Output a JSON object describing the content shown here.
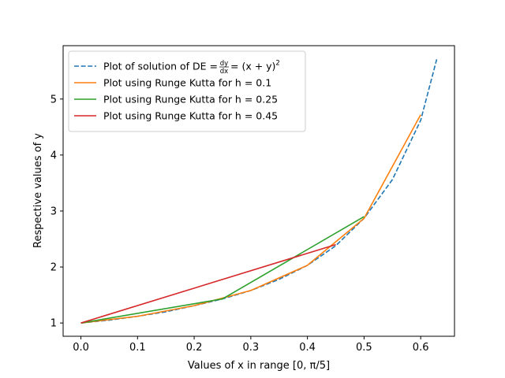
{
  "chart_data": {
    "type": "line",
    "title": "",
    "xlabel": "Values of x in range [0, π/5]",
    "ylabel": "Respective values of y",
    "xlim": [
      -0.0314,
      0.6597
    ],
    "ylim": [
      0.763,
      5.953
    ],
    "xticks": [
      0.0,
      0.1,
      0.2,
      0.3,
      0.4,
      0.5,
      0.6
    ],
    "xtick_labels": [
      "0.0",
      "0.1",
      "0.2",
      "0.3",
      "0.4",
      "0.5",
      "0.6"
    ],
    "yticks": [
      1,
      2,
      3,
      4,
      5
    ],
    "ytick_labels": [
      "1",
      "2",
      "3",
      "4",
      "5"
    ],
    "grid": false,
    "legend_position": "top-left",
    "series": [
      {
        "name_prefix": "Plot of solution of DE = ",
        "name_math": "dy/dx = (x+y)²",
        "color": "#1f77b4",
        "style": "dashed",
        "x": [
          0.0,
          0.05,
          0.1,
          0.15,
          0.2,
          0.25,
          0.3,
          0.35,
          0.4,
          0.45,
          0.5,
          0.55,
          0.6,
          0.6283
        ],
        "y": [
          1.0,
          1.05,
          1.12,
          1.2,
          1.31,
          1.43,
          1.58,
          1.78,
          2.03,
          2.38,
          2.87,
          3.56,
          4.62,
          5.71
        ]
      },
      {
        "name": "Plot using Runge Kutta for  h = 0.1",
        "color": "#ff7f0e",
        "style": "solid",
        "x": [
          0.0,
          0.1,
          0.2,
          0.3,
          0.4,
          0.5,
          0.6
        ],
        "y": [
          1.0,
          1.12,
          1.31,
          1.58,
          2.03,
          2.87,
          4.72
        ]
      },
      {
        "name": "Plot using Runge Kutta for  h = 0.25",
        "color": "#2ca02c",
        "style": "solid",
        "x": [
          0.0,
          0.25,
          0.5
        ],
        "y": [
          1.0,
          1.43,
          2.9
        ]
      },
      {
        "name": "Plot using Runge Kutta for  h = 0.45",
        "color": "#d62728",
        "style": "solid",
        "x": [
          0.0,
          0.45
        ],
        "y": [
          1.0,
          2.4
        ]
      }
    ]
  }
}
